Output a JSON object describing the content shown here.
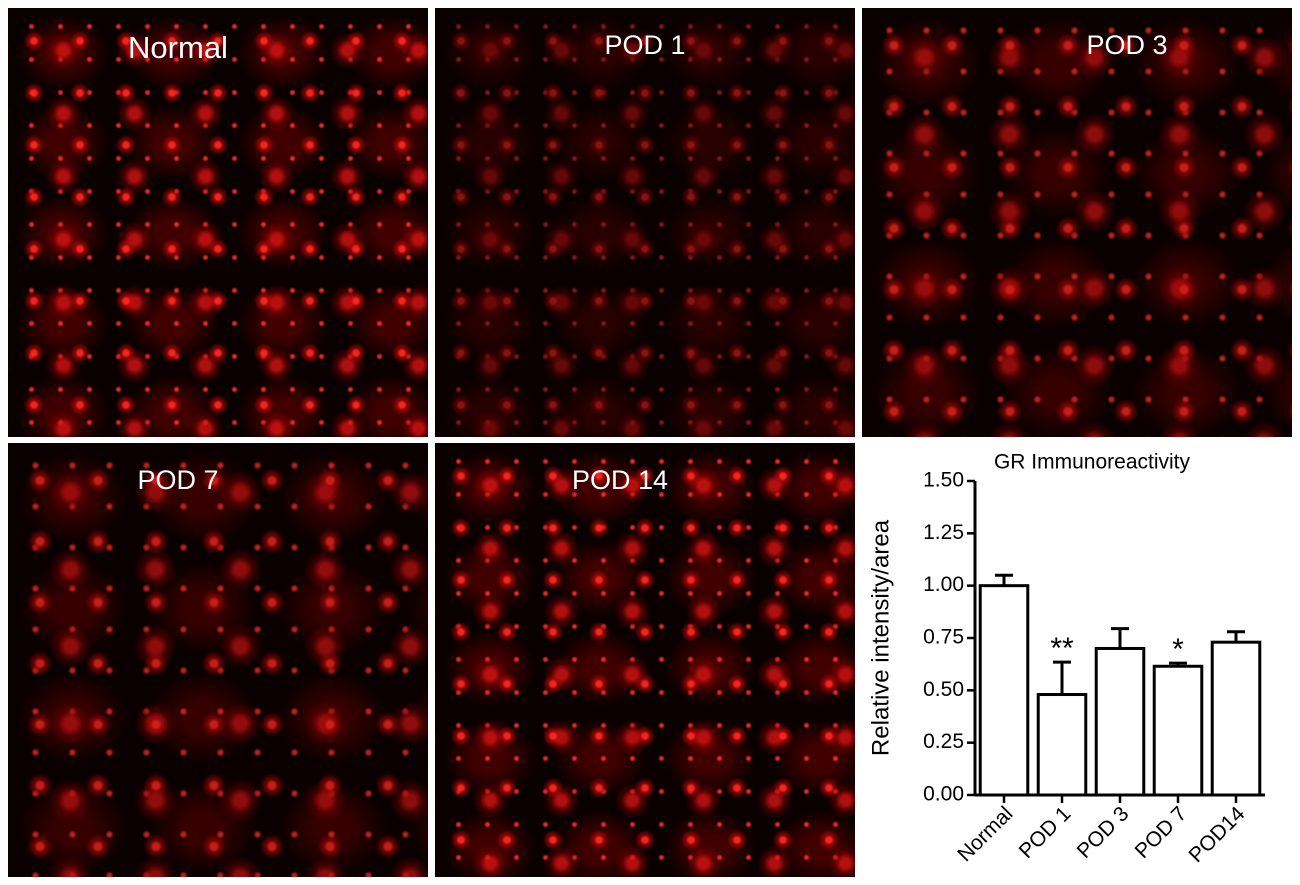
{
  "panels": [
    "Normal",
    "POD 1",
    "POD 3",
    "POD 7",
    "POD 14"
  ],
  "chart_data": {
    "type": "bar",
    "title": "GR Immunoreactivity",
    "y_label": "Relative intensity/area",
    "categories": [
      "Normal",
      "POD 1",
      "POD 3",
      "POD 7",
      "POD14"
    ],
    "values": [
      1.0,
      0.48,
      0.7,
      0.615,
      0.73
    ],
    "errors": [
      0.05,
      0.155,
      0.095,
      0.015,
      0.05
    ],
    "annotations": [
      null,
      "**",
      null,
      "*",
      null
    ],
    "color": "#ffffff",
    "ylim": [
      0,
      1.5
    ],
    "yticks": [
      {
        "value": 0,
        "label": "0.00"
      },
      {
        "value": 0.25,
        "label": "0.25"
      },
      {
        "value": 0.5,
        "label": "0.50"
      },
      {
        "value": 0.75,
        "label": "0.75"
      },
      {
        "value": 1,
        "label": "1.00"
      },
      {
        "value": 1.25,
        "label": "1.25"
      },
      {
        "value": 1.5,
        "label": "1.50"
      }
    ]
  }
}
